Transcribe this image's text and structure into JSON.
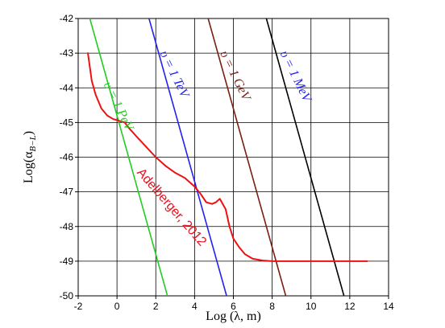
{
  "chart_data": {
    "type": "line",
    "xlabel": "Log (λ, m)",
    "ylabel": "Log(α B−L)",
    "ylabel_main": "Log(α",
    "ylabel_sub": "B−L",
    "ylabel_close": ")",
    "xlim": [
      -2,
      14
    ],
    "ylim": [
      -50,
      -42
    ],
    "xticks": [
      -2,
      0,
      2,
      4,
      6,
      8,
      10,
      12,
      14
    ],
    "yticks": [
      -50,
      -49,
      -48,
      -47,
      -46,
      -45,
      -44,
      -43,
      -42
    ],
    "xtick_labels": [
      "-2",
      "0",
      "2",
      "4",
      "6",
      "8",
      "10",
      "12",
      "14"
    ],
    "ytick_labels": [
      "-50",
      "-49",
      "-48",
      "-47",
      "-46",
      "-45",
      "-44",
      "-43",
      "-42"
    ],
    "grid": true,
    "series": [
      {
        "color": "#22cc22",
        "x": [
          -1.4,
          2.6
        ],
        "y": [
          -42.0,
          -50.0
        ]
      },
      {
        "color": "#2222ee",
        "x": [
          1.65,
          5.65
        ],
        "y": [
          -42.0,
          -50.0
        ]
      },
      {
        "color": "#7a1e10",
        "x": [
          4.7,
          8.7
        ],
        "y": [
          -42.0,
          -50.0
        ]
      },
      {
        "color": "#000000",
        "x": [
          7.7,
          11.7
        ],
        "y": [
          -42.0,
          -50.0
        ]
      },
      {
        "name": "Adelberger, 2012",
        "color": "#ee1111",
        "x": [
          -1.5,
          -1.4,
          -1.3,
          -1.1,
          -0.8,
          -0.5,
          -0.2,
          0.1,
          0.4,
          0.6,
          1.0,
          1.5,
          2.0,
          2.5,
          3.0,
          3.5,
          4.0,
          4.3,
          4.6,
          4.9,
          5.1,
          5.3,
          5.6,
          5.8,
          6.0,
          6.3,
          6.6,
          7.0,
          7.5,
          8.0,
          9.0,
          10.0,
          11.0,
          12.0,
          12.9
        ],
        "y": [
          -43.0,
          -43.4,
          -43.8,
          -44.2,
          -44.6,
          -44.8,
          -44.9,
          -44.95,
          -45.0,
          -45.15,
          -45.4,
          -45.7,
          -46.0,
          -46.25,
          -46.45,
          -46.6,
          -46.85,
          -47.05,
          -47.3,
          -47.35,
          -47.3,
          -47.2,
          -47.5,
          -48.0,
          -48.35,
          -48.6,
          -48.8,
          -48.93,
          -48.98,
          -49.0,
          -49.0,
          -49.0,
          -49.0,
          -49.0,
          -49.0
        ]
      }
    ],
    "annotations": [
      {
        "text": "υ = 1 PeV",
        "color": "#22cc22",
        "x": -0.7,
        "y": -43.9
      },
      {
        "text": "υ = 1 TeV",
        "color": "#2222ee",
        "x": 2.2,
        "y": -43.0
      },
      {
        "text": "υ = 1 GeV",
        "color": "#7a1e10",
        "x": 5.3,
        "y": -43.0
      },
      {
        "text": "υ = 1 MeV",
        "color": "#2222ee",
        "x": 8.4,
        "y": -43.0
      },
      {
        "text": "Adelberger, 2012",
        "color": "#ee1111",
        "x": 1.0,
        "y": -46.45
      }
    ]
  }
}
